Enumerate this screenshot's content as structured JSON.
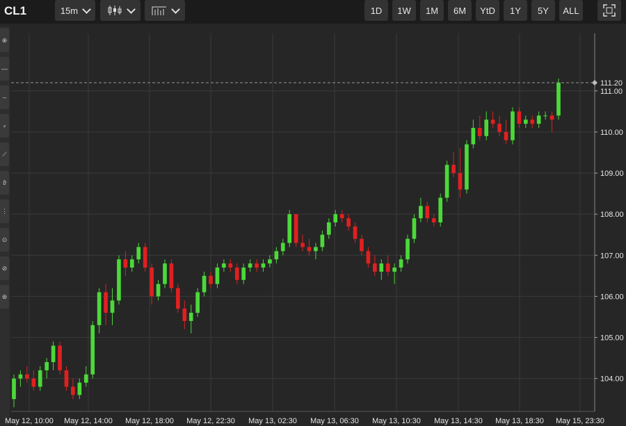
{
  "header": {
    "symbol": "CL1",
    "interval": "15m",
    "chart_style_icon": "candlestick-icon",
    "indicator_icon": "indicators-icon",
    "ranges": [
      "1D",
      "1W",
      "1M",
      "6M",
      "YtD",
      "1Y",
      "5Y",
      "ALL"
    ],
    "fullscreen_icon": "fullscreen-icon"
  },
  "sidebar_icons": [
    "crosshair-icon",
    "line-tool-icon",
    "horizontal-line-icon",
    "fibonacci-icon",
    "trend-tool-icon",
    "pattern-icon",
    "brush-icon",
    "text-icon",
    "measure-icon",
    "magnet-icon"
  ],
  "colors": {
    "background": "#262626",
    "up": "#4cd83a",
    "down": "#e02020",
    "grid": "#3a3a3a"
  },
  "chart_data": {
    "type": "candlestick",
    "ylim": [
      103.2,
      112.4
    ],
    "yticks": [
      "104.00",
      "105.00",
      "106.00",
      "107.00",
      "108.00",
      "109.00",
      "110.00",
      "111.00"
    ],
    "xticks": [
      "May 12, 10:00",
      "May 12, 14:00",
      "May 12, 18:00",
      "May 12, 22:30",
      "May 13, 02:30",
      "May 13, 06:30",
      "May 13, 10:30",
      "May 13, 14:30",
      "May 13, 18:30",
      "May 15, 23:30"
    ],
    "last_price": "111.20",
    "candles": [
      [
        103.5,
        104.1,
        103.3,
        104.0
      ],
      [
        104.0,
        104.2,
        103.8,
        104.1
      ],
      [
        104.1,
        104.3,
        103.9,
        104.0
      ],
      [
        104.0,
        104.2,
        103.7,
        103.8
      ],
      [
        103.8,
        104.3,
        103.7,
        104.2
      ],
      [
        104.2,
        104.5,
        104.0,
        104.4
      ],
      [
        104.4,
        104.9,
        104.2,
        104.8
      ],
      [
        104.8,
        104.9,
        104.1,
        104.2
      ],
      [
        104.2,
        104.3,
        103.7,
        103.8
      ],
      [
        103.8,
        104.0,
        103.5,
        103.6
      ],
      [
        103.6,
        104.0,
        103.5,
        103.9
      ],
      [
        103.9,
        104.3,
        103.8,
        104.1
      ],
      [
        104.1,
        105.4,
        104.0,
        105.3
      ],
      [
        105.3,
        106.2,
        105.1,
        106.1
      ],
      [
        106.1,
        106.3,
        105.3,
        105.6
      ],
      [
        105.6,
        106.2,
        105.3,
        105.9
      ],
      [
        105.9,
        107.0,
        105.8,
        106.9
      ],
      [
        106.9,
        107.1,
        106.5,
        106.7
      ],
      [
        106.7,
        107.0,
        106.6,
        106.9
      ],
      [
        106.9,
        107.3,
        106.8,
        107.2
      ],
      [
        107.2,
        107.3,
        106.6,
        106.7
      ],
      [
        106.7,
        106.8,
        105.8,
        106.0
      ],
      [
        106.0,
        106.4,
        105.9,
        106.3
      ],
      [
        106.3,
        106.9,
        106.2,
        106.8
      ],
      [
        106.8,
        106.9,
        106.1,
        106.2
      ],
      [
        106.2,
        106.3,
        105.6,
        105.7
      ],
      [
        105.7,
        105.9,
        105.2,
        105.4
      ],
      [
        105.4,
        105.8,
        105.1,
        105.6
      ],
      [
        105.6,
        106.2,
        105.5,
        106.1
      ],
      [
        106.1,
        106.6,
        106.0,
        106.5
      ],
      [
        106.5,
        106.6,
        106.2,
        106.3
      ],
      [
        106.3,
        106.8,
        106.2,
        106.7
      ],
      [
        106.7,
        106.9,
        106.6,
        106.8
      ],
      [
        106.8,
        106.9,
        106.6,
        106.7
      ],
      [
        106.7,
        106.8,
        106.3,
        106.4
      ],
      [
        106.4,
        106.8,
        106.3,
        106.7
      ],
      [
        106.7,
        106.9,
        106.6,
        106.8
      ],
      [
        106.8,
        106.9,
        106.6,
        106.7
      ],
      [
        106.7,
        106.9,
        106.6,
        106.8
      ],
      [
        106.8,
        107.0,
        106.7,
        106.9
      ],
      [
        106.9,
        107.2,
        106.8,
        107.1
      ],
      [
        107.1,
        107.4,
        107.0,
        107.3
      ],
      [
        107.3,
        108.1,
        107.2,
        108.0
      ],
      [
        108.0,
        108.0,
        107.2,
        107.3
      ],
      [
        107.3,
        107.5,
        107.1,
        107.2
      ],
      [
        107.2,
        107.4,
        107.0,
        107.1
      ],
      [
        107.1,
        107.3,
        106.9,
        107.2
      ],
      [
        107.2,
        107.6,
        107.1,
        107.5
      ],
      [
        107.5,
        107.9,
        107.4,
        107.8
      ],
      [
        107.8,
        108.1,
        107.7,
        108.0
      ],
      [
        108.0,
        108.1,
        107.8,
        107.9
      ],
      [
        107.9,
        108.0,
        107.6,
        107.7
      ],
      [
        107.7,
        107.8,
        107.3,
        107.4
      ],
      [
        107.4,
        107.5,
        107.0,
        107.1
      ],
      [
        107.1,
        107.2,
        106.7,
        106.8
      ],
      [
        106.8,
        107.0,
        106.5,
        106.6
      ],
      [
        106.6,
        106.9,
        106.4,
        106.8
      ],
      [
        106.8,
        107.0,
        106.5,
        106.6
      ],
      [
        106.6,
        106.8,
        106.3,
        106.7
      ],
      [
        106.7,
        107.0,
        106.6,
        106.9
      ],
      [
        106.9,
        107.5,
        106.8,
        107.4
      ],
      [
        107.4,
        108.0,
        107.3,
        107.9
      ],
      [
        107.9,
        108.4,
        107.8,
        108.2
      ],
      [
        108.2,
        108.3,
        107.8,
        107.9
      ],
      [
        107.9,
        108.0,
        107.7,
        107.8
      ],
      [
        107.8,
        108.5,
        107.7,
        108.4
      ],
      [
        108.4,
        109.3,
        108.3,
        109.2
      ],
      [
        109.2,
        109.5,
        108.9,
        109.0
      ],
      [
        109.0,
        109.6,
        108.4,
        108.6
      ],
      [
        108.6,
        109.8,
        108.5,
        109.7
      ],
      [
        109.7,
        110.3,
        109.6,
        110.1
      ],
      [
        110.1,
        110.4,
        109.8,
        109.9
      ],
      [
        109.9,
        110.5,
        109.8,
        110.3
      ],
      [
        110.3,
        110.5,
        110.1,
        110.2
      ],
      [
        110.2,
        110.4,
        109.9,
        110.0
      ],
      [
        110.0,
        110.3,
        109.7,
        109.8
      ],
      [
        109.8,
        110.6,
        109.7,
        110.5
      ],
      [
        110.5,
        110.6,
        110.1,
        110.2
      ],
      [
        110.2,
        110.4,
        110.1,
        110.3
      ],
      [
        110.3,
        110.4,
        110.1,
        110.2
      ],
      [
        110.2,
        110.5,
        110.1,
        110.4
      ],
      [
        110.4,
        110.5,
        110.3,
        110.4
      ],
      [
        110.4,
        110.5,
        110.0,
        110.3
      ],
      [
        110.4,
        111.3,
        110.3,
        111.2
      ]
    ]
  }
}
